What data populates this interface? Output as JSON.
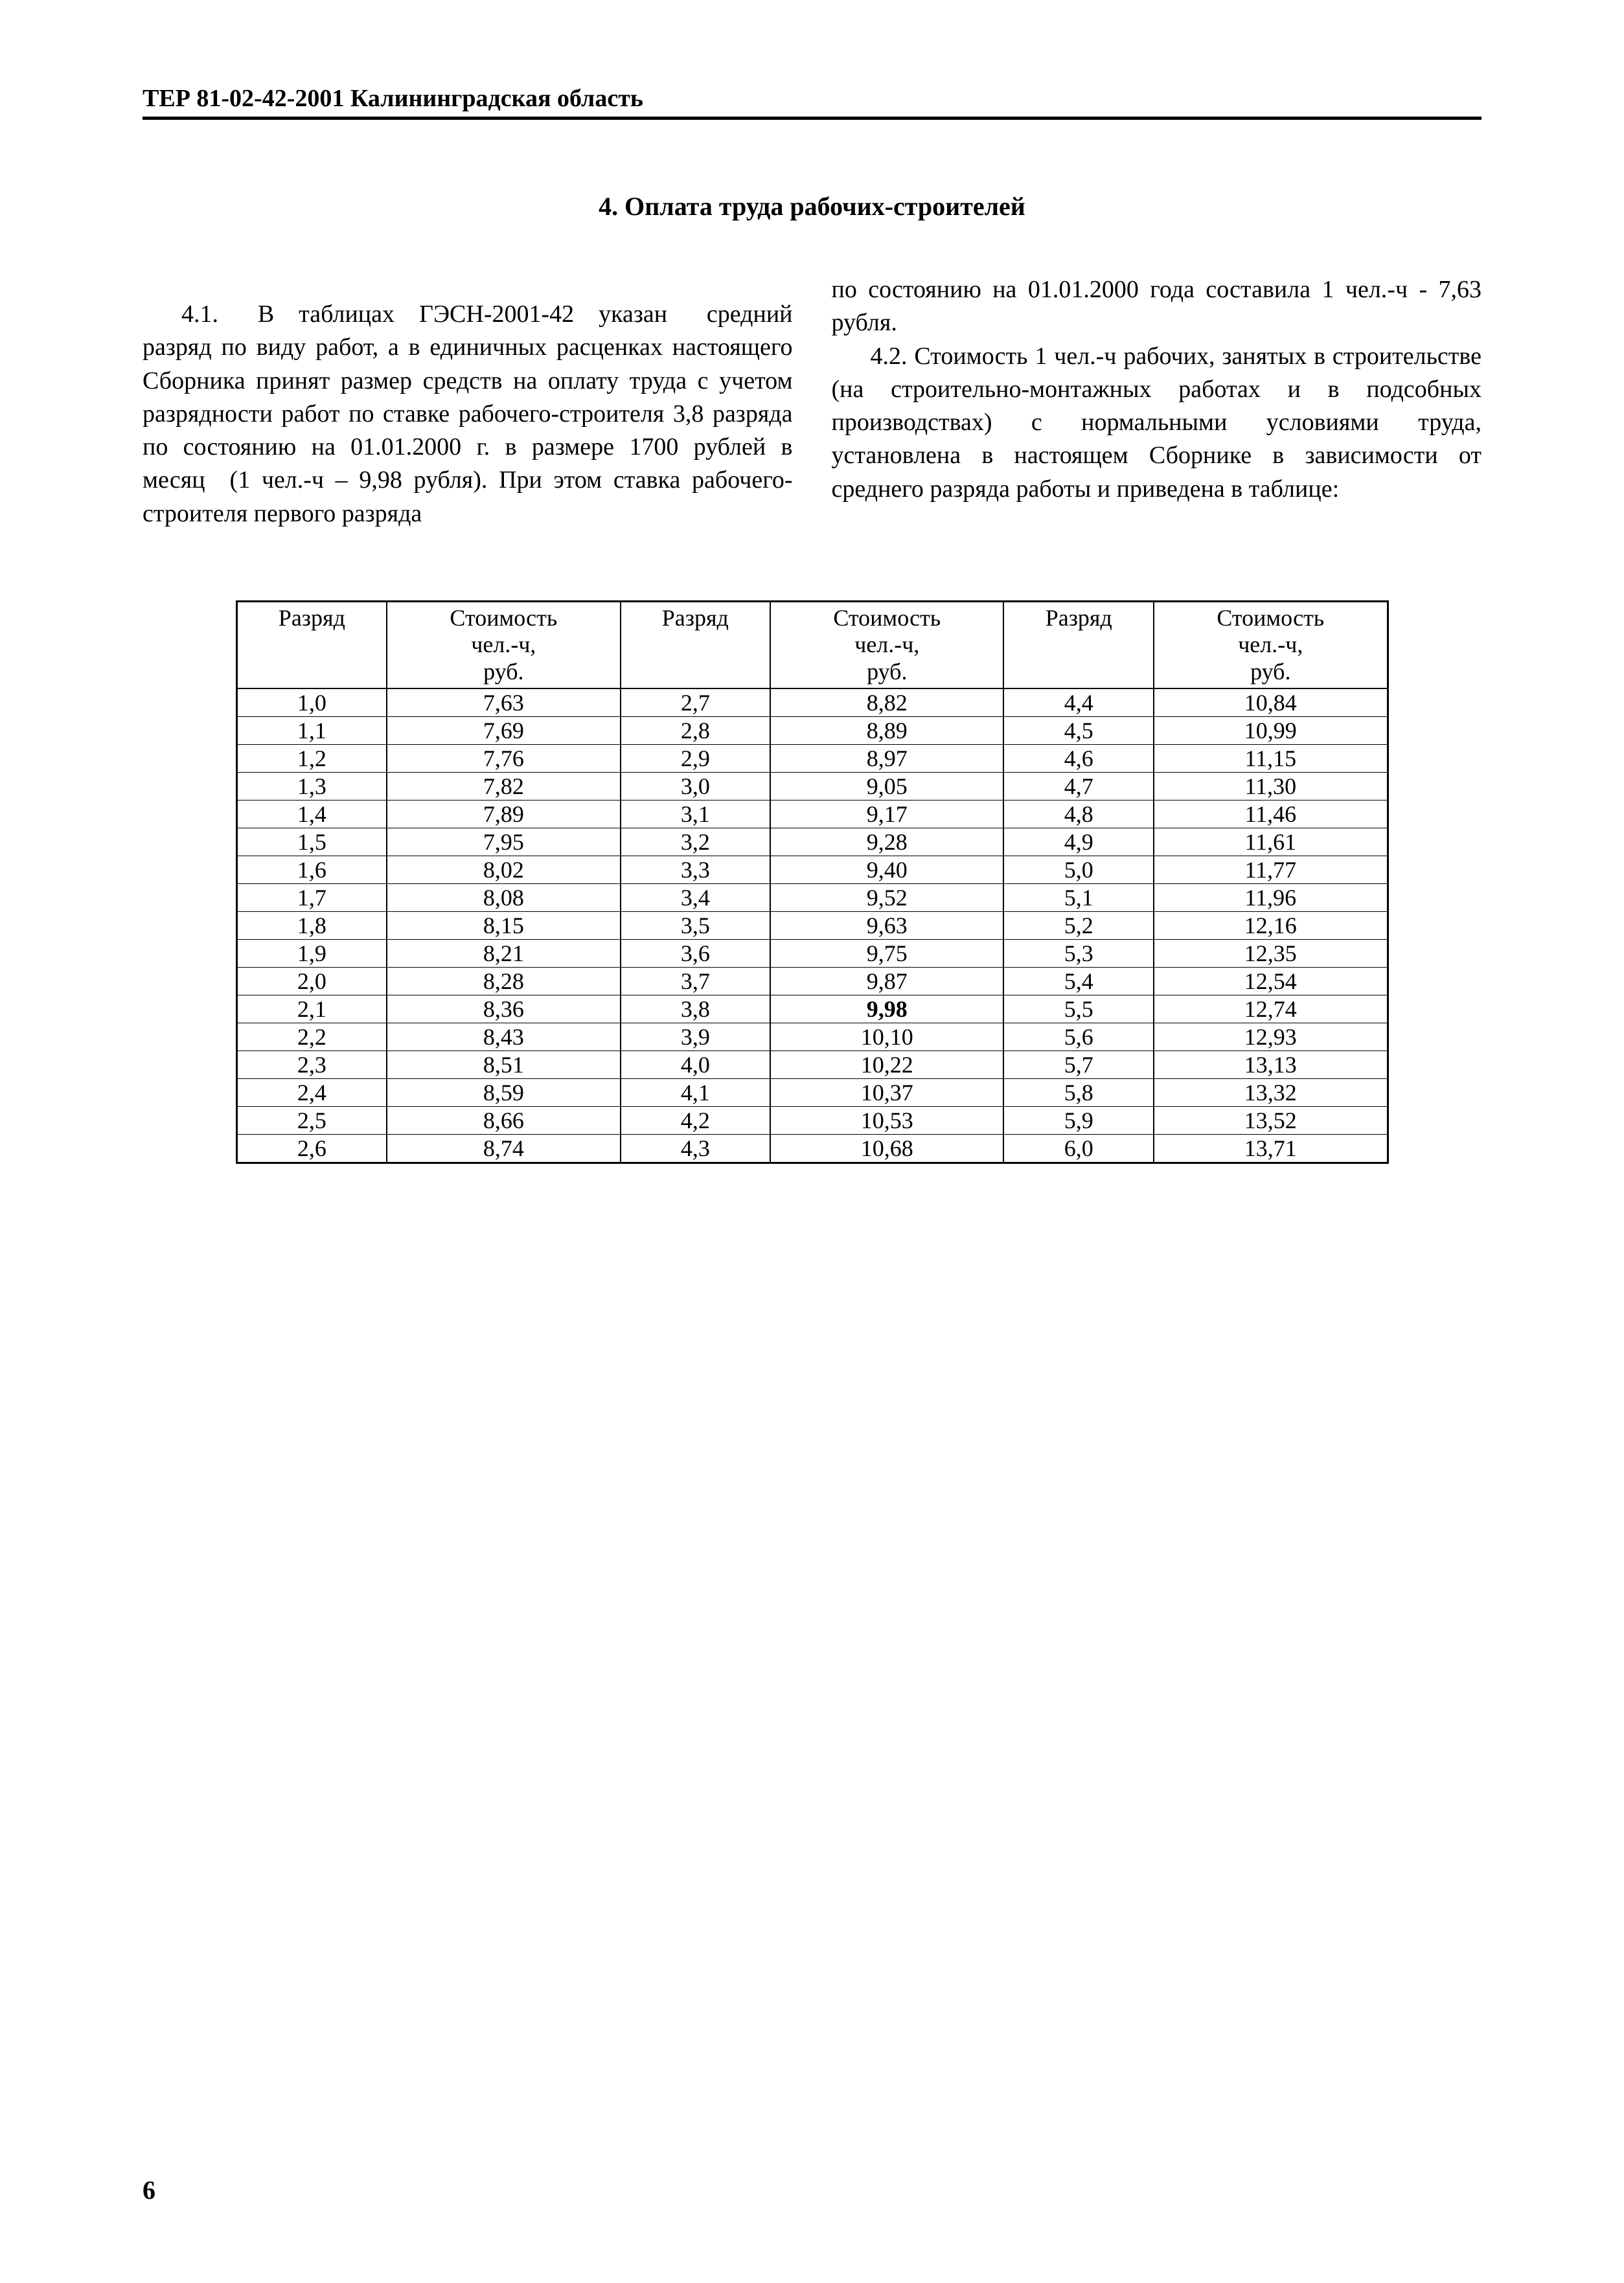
{
  "header": "ТЕР 81-02-42-2001 Калининградская область",
  "section_title": "4. Оплата труда рабочих-строителей",
  "left_col_html": "4.1. В таблицах ГЭСН-2001-42 указан средний разряд по виду работ, а в единичных расценках настоящего Сборника принят размер средств на оплату труда с учетом разрядности работ по ставке рабочего-строителя 3,8 разряда по состоянию на 01.01.2000 г. в размере 1700 рублей в месяц (1 чел.-ч – 9,98 рубля). При этом ставка рабочего-строителя первого разряда",
  "right_col_line1": "по состоянию на 01.01.2000 года составила 1 чел.-ч - 7,63 рубля.",
  "right_col_line2": "4.2. Стоимость 1 чел.-ч рабочих, занятых в строительстве (на строительно-монтажных работах и в подсобных производствах) с нормальными условиями труда, установлена в настоящем Сборнике в зависимости от среднего разряда работы и приведена в таблице:",
  "table": {
    "header_rank": "Разряд",
    "header_cost_l1": "Стоимость",
    "header_cost_l2": "чел.-ч,",
    "header_cost_l3": "руб.",
    "rows": [
      [
        "1,0",
        "7,63",
        "2,7",
        "8,82",
        "4,4",
        "10,84"
      ],
      [
        "1,1",
        "7,69",
        "2,8",
        "8,89",
        "4,5",
        "10,99"
      ],
      [
        "1,2",
        "7,76",
        "2,9",
        "8,97",
        "4,6",
        "11,15"
      ],
      [
        "1,3",
        "7,82",
        "3,0",
        "9,05",
        "4,7",
        "11,30"
      ],
      [
        "1,4",
        "7,89",
        "3,1",
        "9,17",
        "4,8",
        "11,46"
      ],
      [
        "1,5",
        "7,95",
        "3,2",
        "9,28",
        "4,9",
        "11,61"
      ],
      [
        "1,6",
        "8,02",
        "3,3",
        "9,40",
        "5,0",
        "11,77"
      ],
      [
        "1,7",
        "8,08",
        "3,4",
        "9,52",
        "5,1",
        "11,96"
      ],
      [
        "1,8",
        "8,15",
        "3,5",
        "9,63",
        "5,2",
        "12,16"
      ],
      [
        "1,9",
        "8,21",
        "3,6",
        "9,75",
        "5,3",
        "12,35"
      ],
      [
        "2,0",
        "8,28",
        "3,7",
        "9,87",
        "5,4",
        "12,54"
      ],
      [
        "2,1",
        "8,36",
        "3,8",
        "9,98",
        "5,5",
        "12,74"
      ],
      [
        "2,2",
        "8,43",
        "3,9",
        "10,10",
        "5,6",
        "12,93"
      ],
      [
        "2,3",
        "8,51",
        "4,0",
        "10,22",
        "5,7",
        "13,13"
      ],
      [
        "2,4",
        "8,59",
        "4,1",
        "10,37",
        "5,8",
        "13,32"
      ],
      [
        "2,5",
        "8,66",
        "4,2",
        "10,53",
        "5,9",
        "13,52"
      ],
      [
        "2,6",
        "8,74",
        "4,3",
        "10,68",
        "6,0",
        "13,71"
      ]
    ],
    "bold_cell": {
      "row": 11,
      "col": 3
    }
  },
  "page_number": "6"
}
